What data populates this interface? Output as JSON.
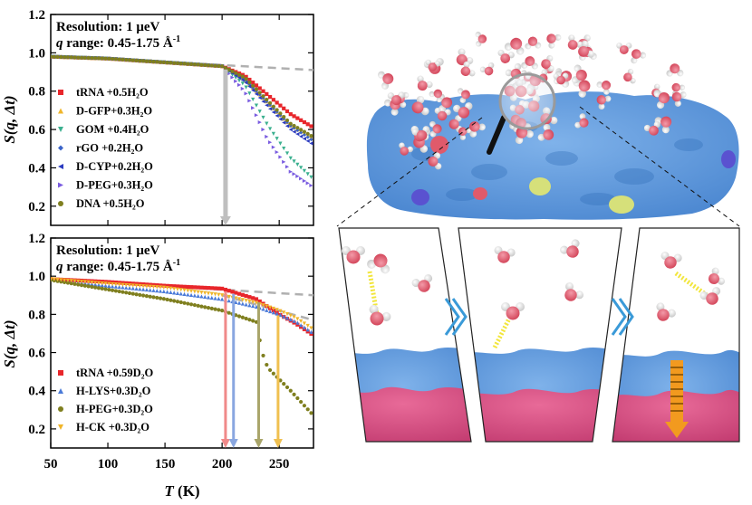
{
  "figure": {
    "xlabel": "T (K)",
    "xlabel_main": "T",
    "xlabel_unit": " (K)"
  },
  "panel_top": {
    "resolution": "Resolution: 1 μeV",
    "q_range_prefix": "q",
    "q_range_text": " range: 0.45-1.75 Å",
    "q_range_sup": "-1",
    "ylabel": "S(q, Δt)",
    "legend": [
      {
        "label": "tRNA  +0.5H₂O",
        "color": "#e8262b",
        "marker": "square"
      },
      {
        "label": "D-GFP+0.3H₂O",
        "color": "#f0b52a",
        "marker": "triangle-up"
      },
      {
        "label": "GOM  +0.4H₂O",
        "color": "#3bb08f",
        "marker": "triangle-down"
      },
      {
        "label": "rGO   +0.2H₂O",
        "color": "#3b64c8",
        "marker": "diamond"
      },
      {
        "label": "D-CYP+0.2H₂O",
        "color": "#2b3bc0",
        "marker": "triangle-left"
      },
      {
        "label": "D-PEG+0.3H₂O",
        "color": "#7a5ce0",
        "marker": "triangle-right"
      },
      {
        "label": "DNA   +0.5H₂O",
        "color": "#7f7f1f",
        "marker": "circle"
      }
    ],
    "arrow_colors": [
      "#bfbfbf"
    ],
    "arrow_temps": [
      203
    ]
  },
  "panel_bottom": {
    "resolution": "Resolution: 1 μeV",
    "q_range_prefix": "q",
    "q_range_text": " range: 0.45-1.75 Å",
    "q_range_sup": "-1",
    "ylabel": "S(q, Δt)",
    "legend": [
      {
        "label": "tRNA  +0.59D₂O",
        "color": "#e8262b",
        "marker": "square"
      },
      {
        "label": "H-LYS+0.3D₂O",
        "color": "#4a7ad8",
        "marker": "triangle-up"
      },
      {
        "label": "H-PEG+0.3D₂O",
        "color": "#7f7f1f",
        "marker": "circle"
      },
      {
        "label": "H-CK  +0.3D₂O",
        "color": "#f0b52a",
        "marker": "triangle-down"
      }
    ],
    "arrow_colors": [
      "#f08a8a",
      "#8aa7e0",
      "#a9a56a",
      "#f0c050"
    ],
    "arrow_temps": [
      203,
      210,
      232,
      249
    ]
  },
  "chart_data": [
    {
      "type": "scatter",
      "xlabel": "T (K)",
      "ylabel": "S(q, Δt)",
      "xlim": [
        50,
        280
      ],
      "ylim": [
        0.1,
        1.2
      ],
      "xticks": [
        50,
        100,
        150,
        200,
        250
      ],
      "yticks": [
        0.2,
        0.4,
        0.6,
        0.8,
        1.0,
        1.2
      ],
      "reference_line": {
        "style": "dashed",
        "x": [
          50,
          280
        ],
        "y": [
          0.985,
          0.91
        ]
      },
      "series": [
        {
          "name": "tRNA  +0.5H₂O",
          "x": [
            50,
            100,
            150,
            200,
            220,
            240,
            260,
            280
          ],
          "y": [
            0.98,
            0.97,
            0.95,
            0.93,
            0.88,
            0.78,
            0.68,
            0.61
          ]
        },
        {
          "name": "D-GFP+0.3H₂O",
          "x": [
            50,
            100,
            150,
            200,
            220,
            240,
            260,
            280
          ],
          "y": [
            0.98,
            0.97,
            0.95,
            0.93,
            0.86,
            0.74,
            0.62,
            0.55
          ]
        },
        {
          "name": "GOM  +0.4H₂O",
          "x": [
            50,
            100,
            150,
            200,
            220,
            240,
            260,
            280
          ],
          "y": [
            0.98,
            0.97,
            0.95,
            0.93,
            0.83,
            0.62,
            0.45,
            0.34
          ]
        },
        {
          "name": "rGO   +0.2H₂O",
          "x": [
            50,
            100,
            150,
            200,
            220,
            240,
            260,
            280
          ],
          "y": [
            0.98,
            0.97,
            0.95,
            0.93,
            0.86,
            0.74,
            0.62,
            0.54
          ]
        },
        {
          "name": "D-CYP+0.2H₂O",
          "x": [
            50,
            100,
            150,
            200,
            220,
            240,
            260,
            280
          ],
          "y": [
            0.98,
            0.97,
            0.95,
            0.93,
            0.85,
            0.72,
            0.6,
            0.52
          ]
        },
        {
          "name": "D-PEG+0.3H₂O",
          "x": [
            50,
            100,
            150,
            200,
            220,
            240,
            260,
            280
          ],
          "y": [
            0.98,
            0.97,
            0.95,
            0.93,
            0.8,
            0.55,
            0.38,
            0.3
          ]
        },
        {
          "name": "DNA   +0.5H₂O",
          "x": [
            50,
            100,
            150,
            200,
            220,
            240,
            260,
            280
          ],
          "y": [
            0.98,
            0.97,
            0.95,
            0.93,
            0.87,
            0.75,
            0.63,
            0.56
          ]
        }
      ]
    },
    {
      "type": "scatter",
      "xlabel": "T (K)",
      "ylabel": "S(q, Δt)",
      "xlim": [
        50,
        280
      ],
      "ylim": [
        0.1,
        1.2
      ],
      "xticks": [
        50,
        100,
        150,
        200,
        250
      ],
      "yticks": [
        0.2,
        0.4,
        0.6,
        0.8,
        1.0,
        1.2
      ],
      "reference_lines": [
        {
          "style": "dashed",
          "x": [
            50,
            280
          ],
          "y": [
            0.985,
            0.9
          ]
        },
        {
          "style": "dashed",
          "x": [
            200,
            280
          ],
          "y": [
            0.9,
            0.77
          ]
        }
      ],
      "series": [
        {
          "name": "tRNA  +0.59D₂O",
          "x": [
            50,
            100,
            150,
            200,
            230,
            250,
            265,
            280
          ],
          "y": [
            0.985,
            0.97,
            0.95,
            0.935,
            0.88,
            0.8,
            0.75,
            0.69
          ]
        },
        {
          "name": "H-LYS+0.3D₂O",
          "x": [
            50,
            100,
            150,
            200,
            230,
            250,
            265,
            280
          ],
          "y": [
            0.985,
            0.95,
            0.92,
            0.88,
            0.84,
            0.8,
            0.76,
            0.7
          ]
        },
        {
          "name": "H-PEG+0.3D₂O",
          "x": [
            50,
            100,
            150,
            200,
            230,
            235,
            240,
            260,
            280
          ],
          "y": [
            0.98,
            0.93,
            0.88,
            0.82,
            0.76,
            0.6,
            0.52,
            0.4,
            0.27
          ]
        },
        {
          "name": "H-CK  +0.3D₂O",
          "x": [
            50,
            100,
            150,
            200,
            230,
            250,
            265,
            280
          ],
          "y": [
            0.985,
            0.96,
            0.94,
            0.9,
            0.86,
            0.82,
            0.78,
            0.72
          ]
        }
      ]
    }
  ]
}
